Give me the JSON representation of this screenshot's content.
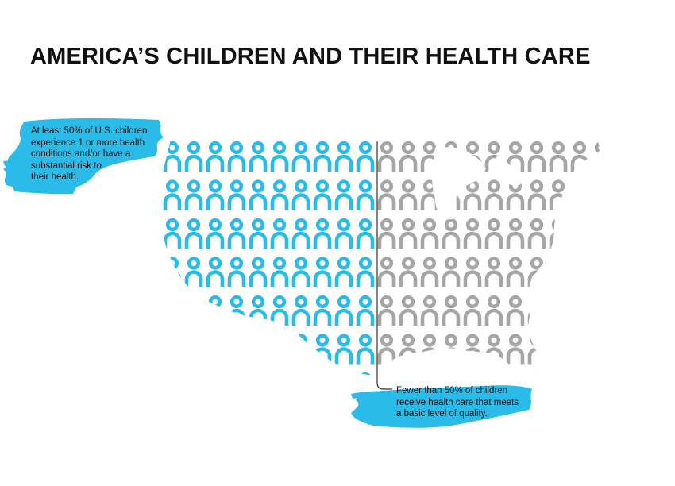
{
  "title": "AMERICA’S CHILDREN AND THEIR HEALTH CARE",
  "callouts": {
    "left": [
      "At least 50% of U.S. children",
      "experience 1 or more health",
      "conditions and/or have a",
      "substantial risk to",
      "their health."
    ],
    "right": [
      "Fewer than 50% of children",
      "receive health care that meets",
      "a basic level of quality."
    ]
  },
  "colors": {
    "blue": "#2bbbe8",
    "gray": "#a6a6a6",
    "divider": "#333333",
    "text": "#111111"
  },
  "icons": {
    "person": "person-icon",
    "map": "usa-map-shape"
  }
}
